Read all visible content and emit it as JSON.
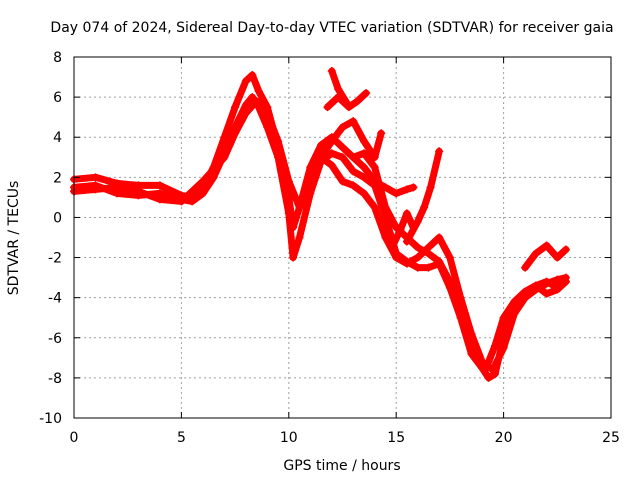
{
  "chart_data": {
    "type": "scatter",
    "title": "Day 074 of 2024, Sidereal Day-to-day VTEC variation (SDTVAR) for receiver gaia",
    "xlabel": "GPS time / hours",
    "ylabel": "SDTVAR / TECUs",
    "xlim": [
      0,
      25
    ],
    "ylim": [
      -10,
      8
    ],
    "xticks": [
      0,
      5,
      10,
      15,
      20,
      25
    ],
    "yticks": [
      -10,
      -8,
      -6,
      -4,
      -2,
      0,
      2,
      4,
      6,
      8
    ],
    "xtick_labels": [
      "0",
      "5",
      "10",
      "15",
      "20",
      "25"
    ],
    "ytick_labels": [
      "-10",
      "-8",
      "-6",
      "-4",
      "-2",
      "0",
      "2",
      "4",
      "6",
      "8"
    ],
    "grid": true,
    "marker": "+",
    "color": "#ff0000",
    "series": [
      {
        "name": "track-1",
        "x": [
          0,
          1,
          2,
          3,
          4,
          5,
          5.5,
          6,
          6.5,
          7,
          7.5,
          8,
          8.3,
          8.6,
          9,
          9.5,
          10,
          10.2,
          10.5,
          11,
          11.5,
          12,
          12.5,
          13,
          13.5,
          14,
          14.5,
          15,
          15.5,
          16,
          16.5,
          17,
          17.5,
          18,
          18.5,
          19,
          19.3,
          19.6,
          20,
          20.5,
          21,
          21.5,
          22,
          22.5,
          22.9
        ],
        "y": [
          1.9,
          2.0,
          1.7,
          1.6,
          1.6,
          1.1,
          1.0,
          1.5,
          2.5,
          4.0,
          5.5,
          6.8,
          7.1,
          6.3,
          5.5,
          3.5,
          1.0,
          -0.5,
          0.5,
          2.5,
          3.6,
          4.0,
          3.5,
          3.0,
          3.2,
          2.5,
          0.5,
          -0.5,
          -1.0,
          -1.5,
          -1.8,
          -2.2,
          -3.2,
          -4.5,
          -6.0,
          -7.5,
          -8.0,
          -7.8,
          -6.0,
          -4.5,
          -4.0,
          -3.6,
          -3.3,
          -3.1,
          -3.0
        ]
      },
      {
        "name": "track-2",
        "x": [
          0,
          1,
          2,
          3,
          4,
          5,
          5.5,
          6,
          6.5,
          7,
          7.5,
          8,
          8.3,
          8.6,
          9,
          9.5,
          10,
          10.2,
          10.5,
          11,
          11.5,
          12,
          12.5,
          13,
          13.5,
          14,
          14.5,
          15,
          15.5,
          16,
          16.5,
          17,
          17.5,
          18,
          18.5,
          19,
          19.3,
          19.6,
          20,
          20.5,
          21,
          21.5,
          22,
          22.5,
          22.9
        ],
        "y": [
          1.5,
          1.6,
          1.2,
          1.1,
          1.2,
          0.9,
          0.8,
          1.2,
          2.0,
          3.2,
          4.5,
          5.6,
          6.0,
          5.5,
          4.5,
          3.0,
          0.2,
          -2.0,
          -1.0,
          1.2,
          2.8,
          3.2,
          3.0,
          2.3,
          2.0,
          1.6,
          0.0,
          -1.8,
          -2.2,
          -2.5,
          -2.5,
          -2.3,
          -3.5,
          -5.0,
          -6.8,
          -7.5,
          -7.2,
          -6.4,
          -5.0,
          -4.2,
          -3.7,
          -3.4,
          -3.2,
          -3.5,
          -3.2
        ]
      },
      {
        "name": "track-3",
        "x": [
          0,
          1,
          2,
          3,
          4,
          5,
          6,
          7,
          7.5,
          8,
          8.5,
          9,
          9.5,
          10,
          10.5,
          11,
          11.5,
          12,
          12.5,
          13,
          13.5,
          14,
          14.5,
          15,
          15.5,
          16,
          16.5,
          17,
          17.5,
          18,
          18.5,
          19,
          19.5,
          20,
          20.5,
          21,
          21.5,
          22,
          22.5,
          22.9
        ],
        "y": [
          1.3,
          1.4,
          1.5,
          1.3,
          0.9,
          0.8,
          1.8,
          3.0,
          4.2,
          5.2,
          5.8,
          5.2,
          3.8,
          1.8,
          0.5,
          2.0,
          3.0,
          2.6,
          1.8,
          1.6,
          1.2,
          0.5,
          -1.0,
          -2.0,
          -2.3,
          -2.0,
          -1.5,
          -1.0,
          -2.0,
          -4.0,
          -5.8,
          -7.2,
          -7.6,
          -6.5,
          -4.8,
          -4.0,
          -3.4,
          -3.8,
          -3.6,
          -3.2
        ]
      },
      {
        "name": "track-4",
        "x": [
          11.5,
          12,
          12.5,
          13,
          13.5,
          14,
          14.3
        ],
        "y": [
          3.0,
          3.8,
          4.5,
          4.8,
          3.8,
          3.0,
          4.2
        ]
      },
      {
        "name": "track-5",
        "x": [
          11.8,
          12.3,
          12.8,
          13.2,
          13.6
        ],
        "y": [
          5.5,
          6.0,
          5.5,
          5.8,
          6.2
        ]
      },
      {
        "name": "track-6",
        "x": [
          12,
          12.3,
          12.7
        ],
        "y": [
          7.3,
          6.4,
          5.7
        ]
      },
      {
        "name": "track-7",
        "x": [
          13,
          13.5,
          14,
          14.5,
          15,
          15.5,
          15.8
        ],
        "y": [
          3.0,
          2.5,
          1.8,
          1.5,
          1.2,
          1.4,
          1.5
        ]
      },
      {
        "name": "track-8",
        "x": [
          15.5,
          16,
          16.3,
          16.6,
          17
        ],
        "y": [
          -1.2,
          -0.2,
          0.5,
          1.5,
          3.3
        ]
      },
      {
        "name": "track-9",
        "x": [
          14.8,
          15.2,
          15.5,
          15.8
        ],
        "y": [
          -1.5,
          -0.6,
          0.2,
          -0.5
        ]
      },
      {
        "name": "track-10",
        "x": [
          21,
          21.5,
          22,
          22.5,
          22.9
        ],
        "y": [
          -2.5,
          -1.8,
          -1.4,
          -2.0,
          -1.6
        ]
      }
    ]
  }
}
